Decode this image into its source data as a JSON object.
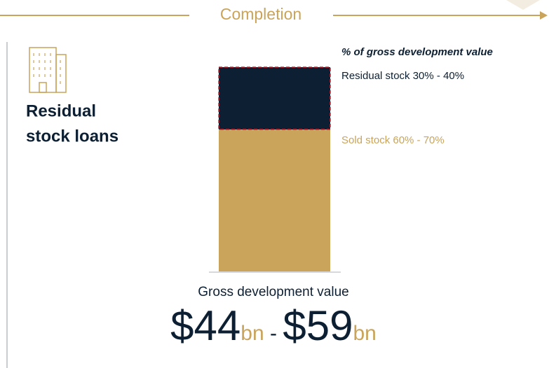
{
  "header": {
    "title": "Completion"
  },
  "product": {
    "title": "Residual stock loans",
    "title_lines": [
      "Residual",
      "stock loans"
    ]
  },
  "bar": {
    "note": "% of gross development value",
    "segments": [
      {
        "label": "Residual stock 30% - 40%"
      },
      {
        "label": "Sold stock 60% - 70%"
      }
    ]
  },
  "footer": {
    "caption": "Gross development value",
    "amount": {
      "low": "$44",
      "low_unit": "bn",
      "separator": " - ",
      "high": "$59",
      "high_unit": "bn"
    }
  }
}
